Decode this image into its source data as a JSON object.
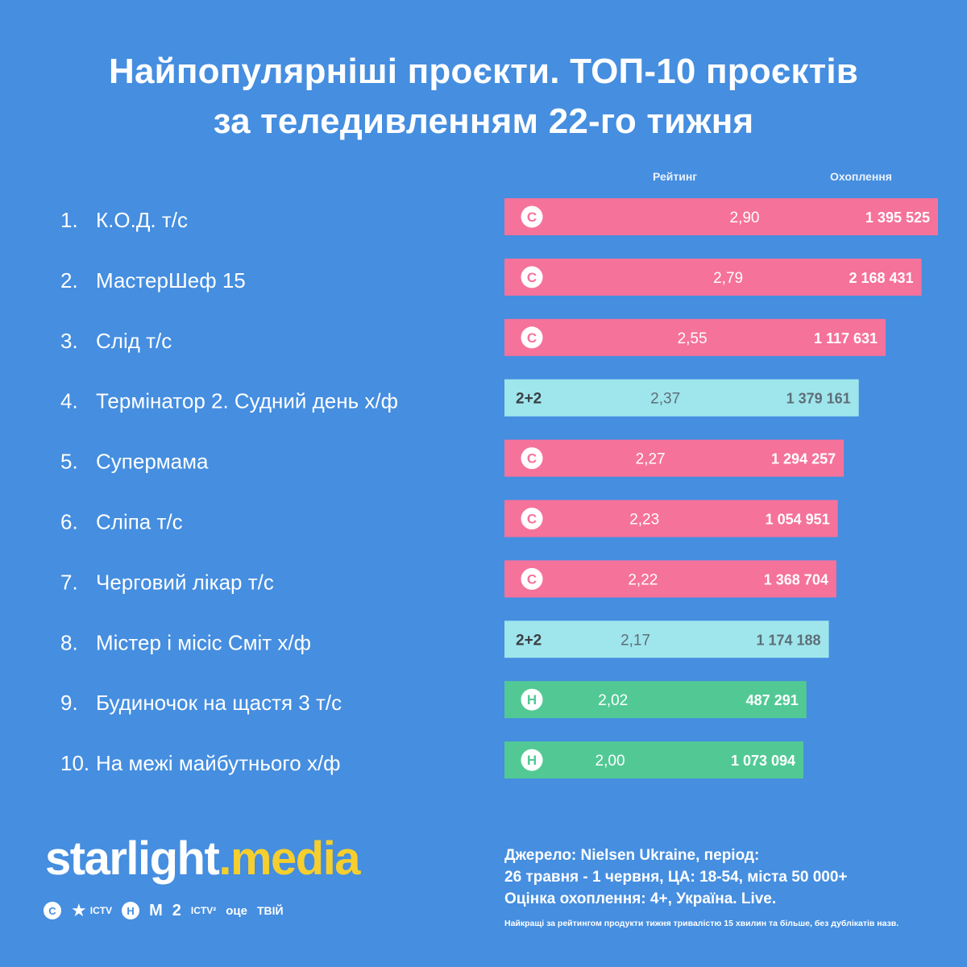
{
  "title": {
    "line1": "Найпопулярніші проєкти. ТОП-10 проєктів",
    "line2": "за теледивленням 22-го тижня"
  },
  "columns": {
    "rating": "Рейтинг",
    "reach": "Охоплення"
  },
  "colors": {
    "background": "#458ee0",
    "ctb": "#f5729b",
    "one_plus_one": "#9fe6ec",
    "novyi": "#52c995",
    "brand_accent": "#f6cf2e"
  },
  "chart_data": {
    "type": "bar",
    "orientation": "horizontal",
    "categories": [
      "К.О.Д. т/с",
      "МастерШеф 15",
      "Слід т/с",
      "Термінатор 2. Судний день х/ф",
      "Супермама",
      "Сліпа т/с",
      "Черговий лікар т/с",
      "Містер і місіс Сміт х/ф",
      "Будиночок на щастя 3 т/с",
      "На межі майбутнього х/ф"
    ],
    "ranks": [
      "1.",
      "2.",
      "3.",
      "4.",
      "5.",
      "6.",
      "7.",
      "8.",
      "9.",
      "10."
    ],
    "channels": [
      "ctb",
      "ctb",
      "ctb",
      "2+2",
      "ctb",
      "ctb",
      "ctb",
      "2+2",
      "novyi",
      "novyi"
    ],
    "channel_marks": {
      "ctb": "С",
      "2+2": "2+2",
      "novyi": "Н"
    },
    "rating_labels": [
      "2,90",
      "2,79",
      "2,55",
      "2,37",
      "2,27",
      "2,23",
      "2,22",
      "2,17",
      "2,02",
      "2,00"
    ],
    "reach_labels": [
      "1 395 525",
      "2 168 431",
      "1 117 631",
      "1 379 161",
      "1 294 257",
      "1 054 951",
      "1 368 704",
      "1 174 188",
      "487 291",
      "1 073 094"
    ],
    "series": [
      {
        "name": "Рейтинг",
        "values": [
          2.9,
          2.79,
          2.55,
          2.37,
          2.27,
          2.23,
          2.22,
          2.17,
          2.02,
          2.0
        ]
      },
      {
        "name": "Охоплення",
        "values": [
          1395525,
          2168431,
          1117631,
          1379161,
          1294257,
          1054951,
          1368704,
          1174188,
          487291,
          1073094
        ]
      }
    ],
    "bar_length_encodes": "Рейтинг"
  },
  "footer": {
    "brand_part1": "starlight",
    "brand_dot": ".",
    "brand_part2": "media",
    "channels": [
      "С",
      "★",
      "ICTV",
      "Н",
      "М",
      "2",
      "ICTV²",
      "оце",
      "ТВІЙ"
    ],
    "source_line1": "Джерело: Nielsen Ukraine, період:",
    "source_line2": "26 травня - 1 червня, ЦА: 18-54, міста 50 000+",
    "source_line3": "Оцінка охоплення: 4+, Україна. Live.",
    "footnote": "Найкращі за рейтингом продукти тижня тривалістю 15 хвилин та більше, без дублікатів назв."
  }
}
